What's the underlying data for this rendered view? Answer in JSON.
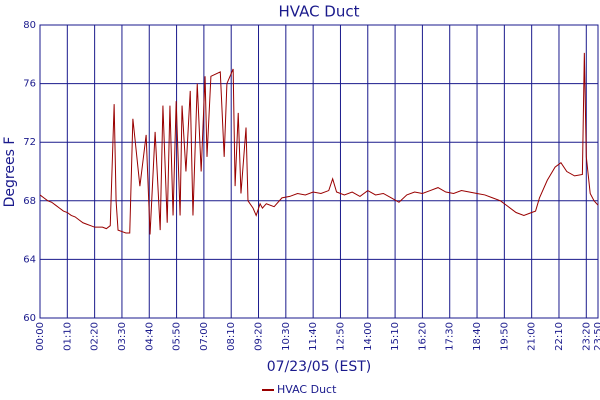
{
  "chart_data": {
    "type": "line",
    "title": "HVAC Duct",
    "x_label": "07/23/05 (EST)",
    "y_label": "Degrees F",
    "xlim": [
      0,
      1430
    ],
    "ylim": [
      60,
      80
    ],
    "yticks": [
      60,
      64,
      68,
      72,
      76,
      80
    ],
    "xticks": [
      {
        "value": 0,
        "label": "00:00"
      },
      {
        "value": 70,
        "label": "01:10"
      },
      {
        "value": 140,
        "label": "02:20"
      },
      {
        "value": 210,
        "label": "03:30"
      },
      {
        "value": 280,
        "label": "04:40"
      },
      {
        "value": 350,
        "label": "05:50"
      },
      {
        "value": 420,
        "label": "07:00"
      },
      {
        "value": 490,
        "label": "08:10"
      },
      {
        "value": 560,
        "label": "09:20"
      },
      {
        "value": 630,
        "label": "10:30"
      },
      {
        "value": 700,
        "label": "11:40"
      },
      {
        "value": 770,
        "label": "12:50"
      },
      {
        "value": 840,
        "label": "14:00"
      },
      {
        "value": 910,
        "label": "15:10"
      },
      {
        "value": 980,
        "label": "16:20"
      },
      {
        "value": 1050,
        "label": "17:30"
      },
      {
        "value": 1120,
        "label": "18:40"
      },
      {
        "value": 1190,
        "label": "19:50"
      },
      {
        "value": 1260,
        "label": "21:00"
      },
      {
        "value": 1330,
        "label": "22:10"
      },
      {
        "value": 1400,
        "label": "23:20"
      },
      {
        "value": 1430,
        "label": "23:50"
      }
    ],
    "grid": true,
    "legend": "bottom",
    "x": [
      0,
      10,
      20,
      30,
      40,
      50,
      60,
      70,
      80,
      90,
      100,
      110,
      120,
      130,
      140,
      150,
      160,
      170,
      180,
      190,
      195,
      200,
      210,
      220,
      230,
      238,
      256,
      272,
      282,
      295,
      308,
      315,
      326,
      333,
      341,
      349,
      359,
      364,
      374,
      385,
      392,
      403,
      413,
      423,
      428,
      438,
      462,
      472,
      479,
      495,
      500,
      508,
      515,
      528,
      533,
      546,
      554,
      564,
      570,
      580,
      600,
      620,
      640,
      660,
      680,
      700,
      720,
      740,
      750,
      760,
      780,
      800,
      820,
      840,
      860,
      880,
      900,
      920,
      940,
      960,
      980,
      1000,
      1020,
      1040,
      1060,
      1080,
      1100,
      1120,
      1140,
      1160,
      1180,
      1200,
      1220,
      1240,
      1260,
      1270,
      1280,
      1300,
      1320,
      1335,
      1350,
      1370,
      1390,
      1395,
      1400,
      1410,
      1420,
      1430
    ],
    "series": [
      {
        "name": "HVAC Duct",
        "color": "#990000",
        "values": [
          68.4,
          68.2,
          68.0,
          67.9,
          67.7,
          67.5,
          67.3,
          67.2,
          67.0,
          66.9,
          66.7,
          66.5,
          66.4,
          66.3,
          66.2,
          66.2,
          66.2,
          66.1,
          66.3,
          74.6,
          68.0,
          66.0,
          65.9,
          65.8,
          65.8,
          73.6,
          69.0,
          72.5,
          65.7,
          72.7,
          66.0,
          74.5,
          66.5,
          74.5,
          67.0,
          74.8,
          67.0,
          74.5,
          70.0,
          75.5,
          67.0,
          76.0,
          70.0,
          76.5,
          71.0,
          76.5,
          76.8,
          71.0,
          76.0,
          77.0,
          69.0,
          74.0,
          68.5,
          73.0,
          68.0,
          67.5,
          67.0,
          67.8,
          67.5,
          67.8,
          67.6,
          68.2,
          68.3,
          68.5,
          68.4,
          68.6,
          68.5,
          68.7,
          69.5,
          68.6,
          68.4,
          68.6,
          68.3,
          68.7,
          68.4,
          68.5,
          68.2,
          67.9,
          68.4,
          68.6,
          68.5,
          68.7,
          68.9,
          68.6,
          68.5,
          68.7,
          68.6,
          68.5,
          68.4,
          68.2,
          68.0,
          67.6,
          67.2,
          67.0,
          67.2,
          67.3,
          68.2,
          69.4,
          70.3,
          70.6,
          70.0,
          69.7,
          69.8,
          78.1,
          71.0,
          68.5,
          68.0,
          67.7
        ]
      }
    ]
  }
}
